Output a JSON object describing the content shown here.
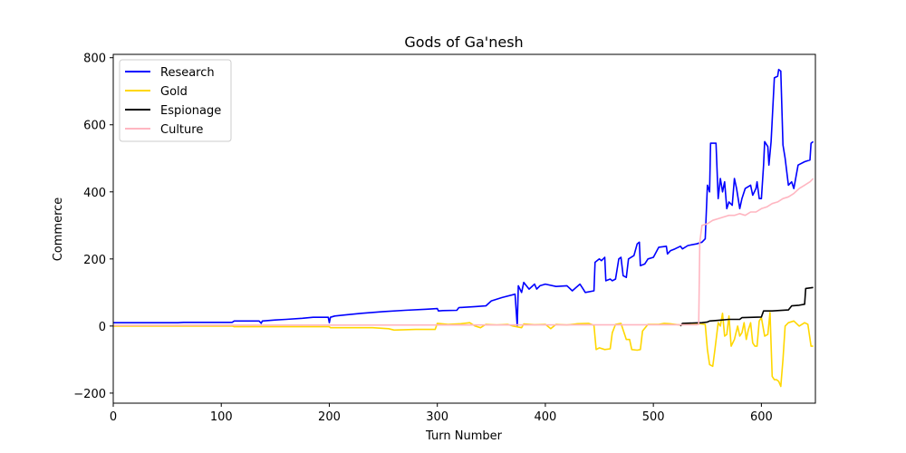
{
  "chart_data": {
    "type": "line",
    "title": "Gods of Ga'nesh",
    "xlabel": "Turn Number",
    "ylabel": "Commerce",
    "xlim": [
      0,
      650
    ],
    "ylim": [
      -230,
      810
    ],
    "xticks": [
      0,
      100,
      200,
      300,
      400,
      500,
      600
    ],
    "yticks": [
      -200,
      0,
      200,
      400,
      600,
      800
    ],
    "grid": false,
    "legend": "top-left",
    "series": [
      {
        "name": "Research",
        "color": "#0000ff",
        "points": [
          [
            0,
            10
          ],
          [
            60,
            10
          ],
          [
            65,
            11
          ],
          [
            110,
            11
          ],
          [
            112,
            15
          ],
          [
            135,
            15
          ],
          [
            137,
            8
          ],
          [
            138,
            15
          ],
          [
            150,
            18
          ],
          [
            160,
            20
          ],
          [
            175,
            23
          ],
          [
            185,
            26
          ],
          [
            199,
            26
          ],
          [
            200,
            10
          ],
          [
            201,
            26
          ],
          [
            205,
            30
          ],
          [
            215,
            33
          ],
          [
            230,
            38
          ],
          [
            250,
            43
          ],
          [
            270,
            47
          ],
          [
            290,
            50
          ],
          [
            300,
            52
          ],
          [
            301,
            45
          ],
          [
            305,
            46
          ],
          [
            318,
            47
          ],
          [
            320,
            55
          ],
          [
            335,
            58
          ],
          [
            345,
            60
          ],
          [
            350,
            75
          ],
          [
            360,
            85
          ],
          [
            372,
            95
          ],
          [
            374,
            0
          ],
          [
            375,
            120
          ],
          [
            378,
            100
          ],
          [
            380,
            130
          ],
          [
            385,
            110
          ],
          [
            390,
            125
          ],
          [
            392,
            110
          ],
          [
            395,
            120
          ],
          [
            400,
            125
          ],
          [
            410,
            118
          ],
          [
            420,
            120
          ],
          [
            425,
            105
          ],
          [
            432,
            125
          ],
          [
            435,
            110
          ],
          [
            437,
            100
          ],
          [
            445,
            105
          ],
          [
            446,
            190
          ],
          [
            450,
            200
          ],
          [
            452,
            195
          ],
          [
            455,
            205
          ],
          [
            456,
            135
          ],
          [
            460,
            140
          ],
          [
            462,
            135
          ],
          [
            465,
            140
          ],
          [
            468,
            200
          ],
          [
            470,
            205
          ],
          [
            472,
            150
          ],
          [
            475,
            145
          ],
          [
            477,
            200
          ],
          [
            482,
            210
          ],
          [
            485,
            245
          ],
          [
            487,
            250
          ],
          [
            488,
            180
          ],
          [
            492,
            185
          ],
          [
            495,
            200
          ],
          [
            500,
            205
          ],
          [
            505,
            235
          ],
          [
            512,
            238
          ],
          [
            513,
            215
          ],
          [
            516,
            225
          ],
          [
            520,
            230
          ],
          [
            525,
            238
          ],
          [
            527,
            230
          ],
          [
            532,
            240
          ],
          [
            540,
            245
          ],
          [
            545,
            250
          ],
          [
            548,
            260
          ],
          [
            550,
            420
          ],
          [
            552,
            400
          ],
          [
            553,
            545
          ],
          [
            558,
            545
          ],
          [
            560,
            380
          ],
          [
            562,
            440
          ],
          [
            564,
            400
          ],
          [
            566,
            430
          ],
          [
            568,
            350
          ],
          [
            570,
            370
          ],
          [
            573,
            360
          ],
          [
            575,
            440
          ],
          [
            577,
            410
          ],
          [
            580,
            350
          ],
          [
            582,
            380
          ],
          [
            585,
            410
          ],
          [
            590,
            420
          ],
          [
            592,
            390
          ],
          [
            595,
            410
          ],
          [
            596,
            430
          ],
          [
            598,
            380
          ],
          [
            600,
            380
          ],
          [
            602,
            480
          ],
          [
            603,
            550
          ],
          [
            606,
            535
          ],
          [
            607,
            480
          ],
          [
            609,
            550
          ],
          [
            612,
            740
          ],
          [
            615,
            745
          ],
          [
            616,
            765
          ],
          [
            618,
            760
          ],
          [
            620,
            540
          ],
          [
            622,
            500
          ],
          [
            625,
            420
          ],
          [
            628,
            430
          ],
          [
            630,
            410
          ],
          [
            634,
            480
          ],
          [
            640,
            490
          ],
          [
            645,
            495
          ],
          [
            646,
            545
          ],
          [
            648,
            550
          ]
        ]
      },
      {
        "name": "Gold",
        "color": "#ffd700",
        "points": [
          [
            0,
            0
          ],
          [
            110,
            0
          ],
          [
            112,
            -2
          ],
          [
            200,
            -2
          ],
          [
            201,
            -5
          ],
          [
            240,
            -5
          ],
          [
            255,
            -8
          ],
          [
            260,
            -12
          ],
          [
            280,
            -10
          ],
          [
            298,
            -10
          ],
          [
            300,
            8
          ],
          [
            310,
            5
          ],
          [
            322,
            7
          ],
          [
            330,
            10
          ],
          [
            335,
            0
          ],
          [
            340,
            -5
          ],
          [
            345,
            5
          ],
          [
            355,
            3
          ],
          [
            365,
            5
          ],
          [
            370,
            0
          ],
          [
            378,
            -5
          ],
          [
            380,
            6
          ],
          [
            390,
            4
          ],
          [
            400,
            5
          ],
          [
            405,
            -8
          ],
          [
            410,
            5
          ],
          [
            420,
            3
          ],
          [
            430,
            7
          ],
          [
            440,
            8
          ],
          [
            445,
            2
          ],
          [
            447,
            -70
          ],
          [
            450,
            -65
          ],
          [
            455,
            -70
          ],
          [
            460,
            -68
          ],
          [
            462,
            -20
          ],
          [
            465,
            5
          ],
          [
            470,
            8
          ],
          [
            475,
            -40
          ],
          [
            478,
            -40
          ],
          [
            480,
            -70
          ],
          [
            485,
            -72
          ],
          [
            488,
            -70
          ],
          [
            490,
            -15
          ],
          [
            495,
            5
          ],
          [
            505,
            5
          ],
          [
            510,
            8
          ],
          [
            515,
            7
          ],
          [
            520,
            5
          ],
          [
            525,
            3
          ],
          [
            530,
            5
          ],
          [
            540,
            8
          ],
          [
            548,
            5
          ],
          [
            550,
            -70
          ],
          [
            552,
            -115
          ],
          [
            555,
            -120
          ],
          [
            557,
            -70
          ],
          [
            560,
            10
          ],
          [
            562,
            0
          ],
          [
            564,
            38
          ],
          [
            566,
            -30
          ],
          [
            568,
            -25
          ],
          [
            570,
            30
          ],
          [
            572,
            -60
          ],
          [
            575,
            -40
          ],
          [
            578,
            0
          ],
          [
            580,
            -30
          ],
          [
            582,
            -20
          ],
          [
            584,
            10
          ],
          [
            586,
            -40
          ],
          [
            588,
            -10
          ],
          [
            590,
            10
          ],
          [
            592,
            -50
          ],
          [
            594,
            -60
          ],
          [
            596,
            -60
          ],
          [
            598,
            15
          ],
          [
            600,
            25
          ],
          [
            603,
            -30
          ],
          [
            606,
            -25
          ],
          [
            608,
            40
          ],
          [
            610,
            -150
          ],
          [
            612,
            -160
          ],
          [
            614,
            -160
          ],
          [
            616,
            -165
          ],
          [
            618,
            -180
          ],
          [
            620,
            -100
          ],
          [
            622,
            0
          ],
          [
            625,
            10
          ],
          [
            630,
            15
          ],
          [
            635,
            0
          ],
          [
            640,
            10
          ],
          [
            643,
            5
          ],
          [
            646,
            -60
          ],
          [
            648,
            -60
          ]
        ]
      },
      {
        "name": "Espionage",
        "color": "#000000",
        "points": [
          [
            525,
            0
          ],
          [
            527,
            8
          ],
          [
            545,
            10
          ],
          [
            550,
            12
          ],
          [
            552,
            15
          ],
          [
            560,
            17
          ],
          [
            570,
            20
          ],
          [
            580,
            20
          ],
          [
            582,
            25
          ],
          [
            600,
            27
          ],
          [
            602,
            45
          ],
          [
            610,
            45
          ],
          [
            625,
            48
          ],
          [
            628,
            60
          ],
          [
            635,
            62
          ],
          [
            640,
            65
          ],
          [
            641,
            112
          ],
          [
            648,
            115
          ]
        ]
      },
      {
        "name": "Culture",
        "color": "#ffb6c1",
        "points": [
          [
            0,
            2
          ],
          [
            540,
            4
          ],
          [
            542,
            5
          ],
          [
            543,
            250
          ],
          [
            545,
            300
          ],
          [
            550,
            305
          ],
          [
            555,
            315
          ],
          [
            560,
            320
          ],
          [
            565,
            325
          ],
          [
            570,
            330
          ],
          [
            575,
            330
          ],
          [
            580,
            335
          ],
          [
            585,
            330
          ],
          [
            590,
            340
          ],
          [
            595,
            340
          ],
          [
            600,
            350
          ],
          [
            605,
            355
          ],
          [
            610,
            365
          ],
          [
            615,
            370
          ],
          [
            620,
            380
          ],
          [
            625,
            385
          ],
          [
            630,
            395
          ],
          [
            635,
            410
          ],
          [
            640,
            420
          ],
          [
            645,
            430
          ],
          [
            648,
            440
          ]
        ]
      }
    ]
  }
}
